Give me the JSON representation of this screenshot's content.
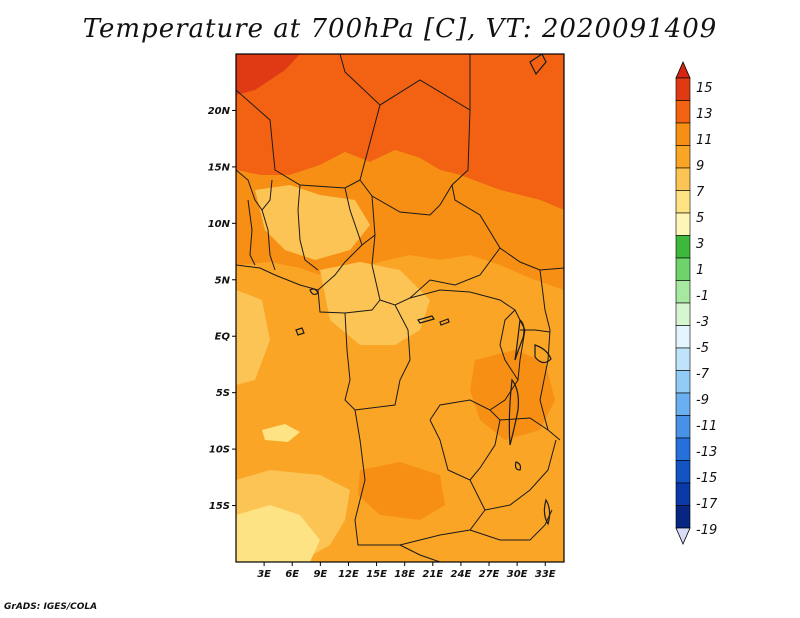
{
  "title": "Temperature at 700hPa [C], VT: 2020091409",
  "credit": "GrADS: IGES/COLA",
  "axes": {
    "lat_ticks": [
      {
        "label": "20N",
        "value": 20
      },
      {
        "label": "15N",
        "value": 15
      },
      {
        "label": "10N",
        "value": 10
      },
      {
        "label": "5N",
        "value": 5
      },
      {
        "label": "EQ",
        "value": 0
      },
      {
        "label": "5S",
        "value": -5
      },
      {
        "label": "10S",
        "value": -10
      },
      {
        "label": "15S",
        "value": -15
      }
    ],
    "lon_ticks": [
      {
        "label": "3E",
        "value": 3
      },
      {
        "label": "6E",
        "value": 6
      },
      {
        "label": "9E",
        "value": 9
      },
      {
        "label": "12E",
        "value": 12
      },
      {
        "label": "15E",
        "value": 15
      },
      {
        "label": "18E",
        "value": 18
      },
      {
        "label": "21E",
        "value": 21
      },
      {
        "label": "24E",
        "value": 24
      },
      {
        "label": "27E",
        "value": 27
      },
      {
        "label": "30E",
        "value": 30
      },
      {
        "label": "33E",
        "value": 33
      }
    ],
    "lon_range": [
      0,
      35
    ],
    "lat_range": [
      -20,
      25
    ]
  },
  "colorbar": {
    "levels": [
      {
        "label": "15",
        "color": "#e03a14"
      },
      {
        "label": "13",
        "color": "#f26212"
      },
      {
        "label": "11",
        "color": "#f78f14"
      },
      {
        "label": "9",
        "color": "#faa526"
      },
      {
        "label": "7",
        "color": "#fcc454"
      },
      {
        "label": "5",
        "color": "#fde383"
      },
      {
        "label": "3",
        "color": "#fdf6b6"
      },
      {
        "label": "1",
        "color": "#3db83d"
      },
      {
        "label": "-1",
        "color": "#6fd36c"
      },
      {
        "label": "-3",
        "color": "#a6e89f"
      },
      {
        "label": "-5",
        "color": "#d6f6d2"
      },
      {
        "label": "-7",
        "color": "#e4f4fd"
      },
      {
        "label": "-9",
        "color": "#bee3fb"
      },
      {
        "label": "-11",
        "color": "#92cbf6"
      },
      {
        "label": "-13",
        "color": "#6aaff0"
      },
      {
        "label": "-15",
        "color": "#4891e6"
      },
      {
        "label": "-17",
        "color": "#2670dc"
      },
      {
        "label": "-19",
        "color": "#1254c2"
      }
    ],
    "bottom_colors": [
      "#0b3aa8",
      "#062682"
    ],
    "top_arrow_color": "#d62412",
    "bottom_arrow_color": "#d8dcf8"
  },
  "field_colors": {
    "t13_15": "#f26212",
    "t11_13": "#f78f14",
    "t9_11": "#faa526",
    "t7_9": "#fcc454",
    "t5_7": "#fde383",
    "t15plus": "#e03a14"
  }
}
